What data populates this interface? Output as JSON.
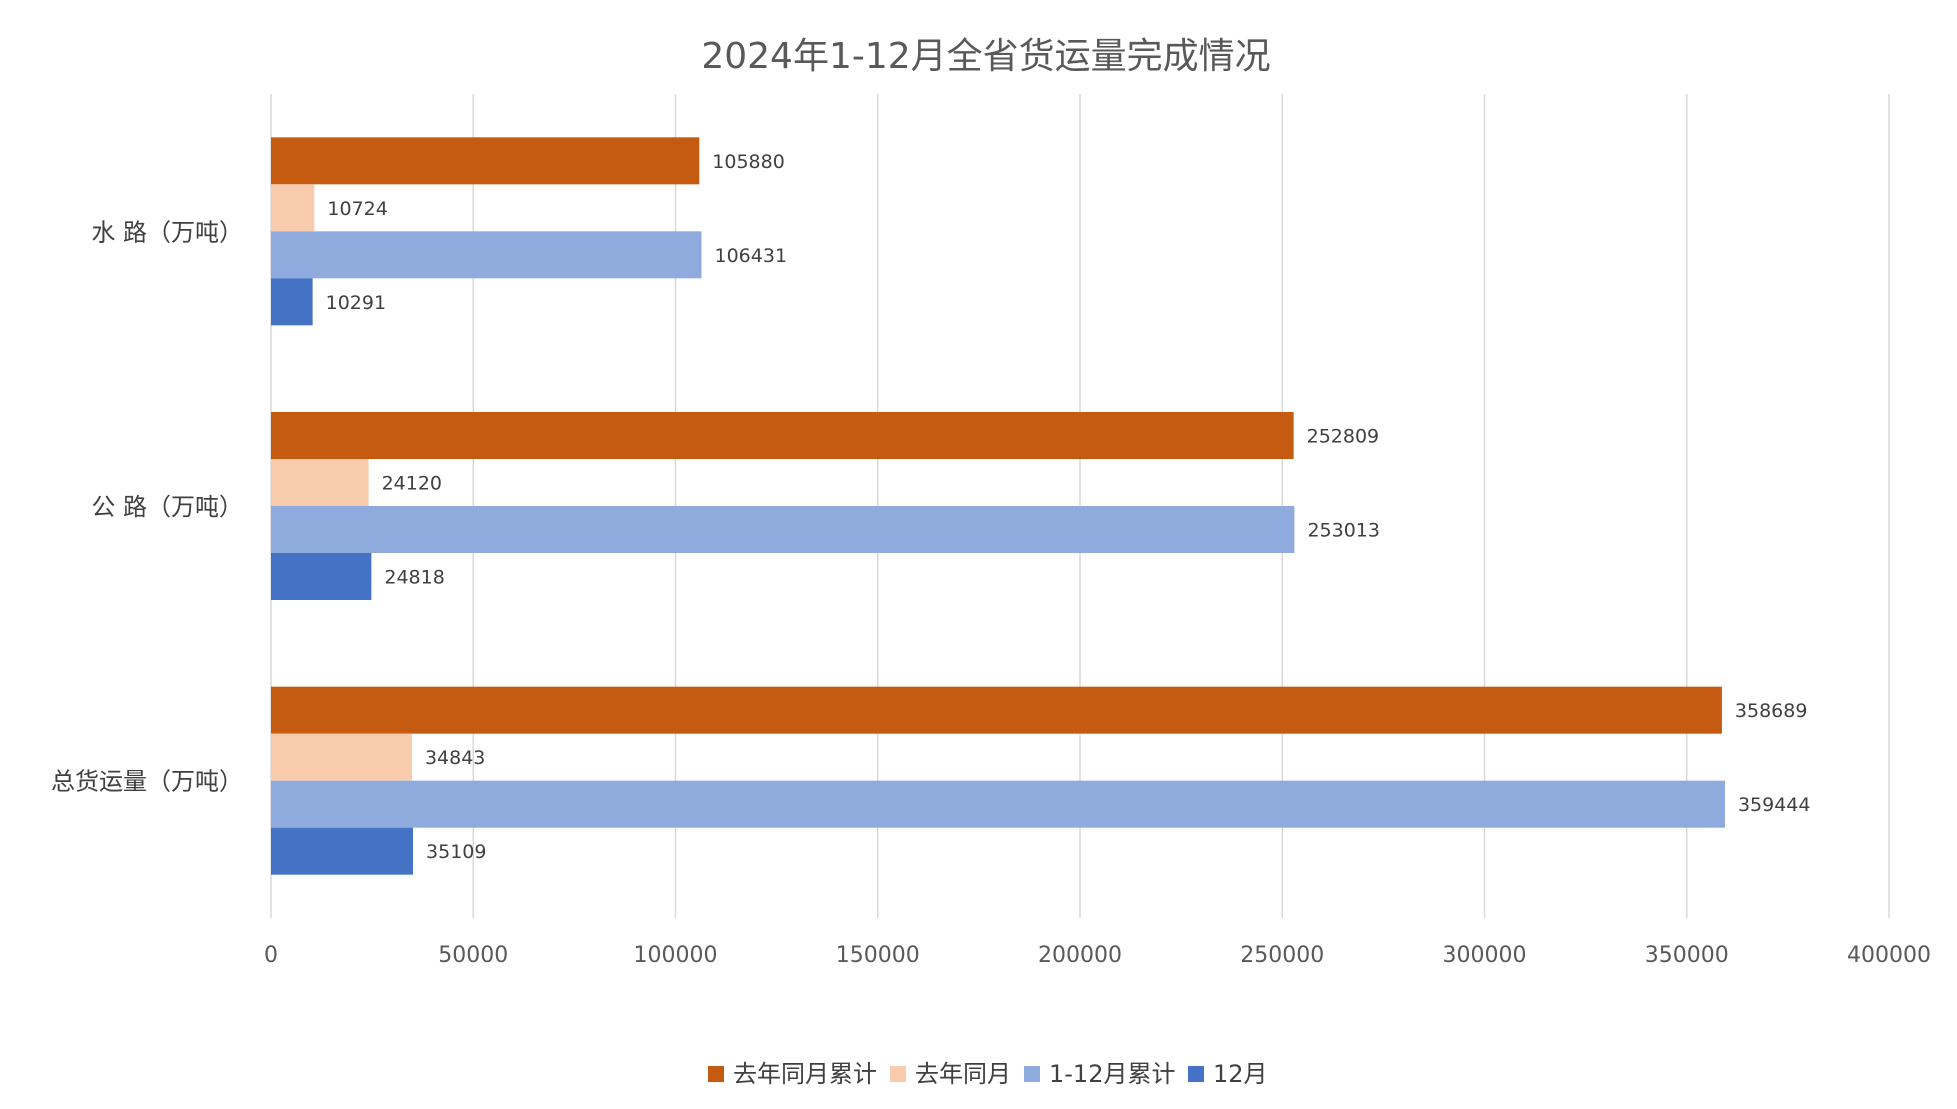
{
  "chart_data": {
    "type": "bar",
    "orientation": "horizontal",
    "title": "2024年1-12月全省货运量完成情况",
    "categories": [
      "水 路（万吨）",
      "公 路（万吨）",
      "总货运量（万吨）"
    ],
    "series": [
      {
        "name": "去年同月累计",
        "color": "#C55A11",
        "values": [
          105880,
          252809,
          358689
        ]
      },
      {
        "name": "去年同月",
        "color": "#F8CBAD",
        "values": [
          10724,
          24120,
          34843
        ]
      },
      {
        "name": "1-12月累计",
        "color": "#8FAADC",
        "values": [
          106431,
          253013,
          359444
        ]
      },
      {
        "name": "12月",
        "color": "#4472C4",
        "values": [
          10291,
          24818,
          35109
        ]
      }
    ],
    "xlim": [
      0,
      400000
    ],
    "xticks": [
      "0",
      "50000",
      "100000",
      "150000",
      "200000",
      "250000",
      "300000",
      "350000",
      "400000"
    ],
    "grid": true,
    "legend_position": "bottom",
    "data_labels": true
  }
}
